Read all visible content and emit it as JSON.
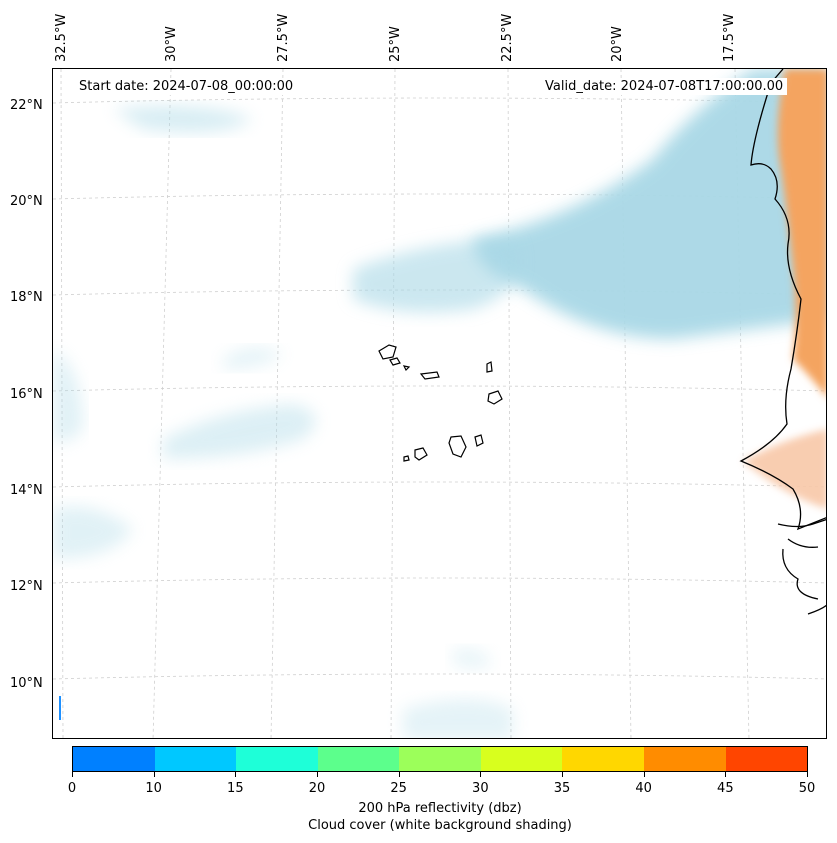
{
  "map": {
    "start_date": "Start date: 2024-07-08_00:00:00",
    "valid_date": "Valid_date: 2024-07-08T17:00:00.00",
    "lon_labels": [
      "32.5°W",
      "30°W",
      "27.5°W",
      "25°W",
      "22.5°W",
      "20°W",
      "17.5°W"
    ],
    "lat_labels": [
      "22°N",
      "20°N",
      "18°N",
      "16°N",
      "14°N",
      "12°N",
      "10°N"
    ],
    "colors": {
      "cloud": "#a9d8e6",
      "land_high": "#f4a460",
      "land_low": "#f8c8a8",
      "radar_blip": "#1e90ff"
    }
  },
  "colorbar": {
    "ticks": [
      "0",
      "10",
      "15",
      "20",
      "25",
      "30",
      "35",
      "40",
      "45",
      "50"
    ],
    "colors": [
      "#0080ff",
      "#00c8ff",
      "#1effd8",
      "#5cff8c",
      "#9cff5a",
      "#d8ff1e",
      "#ffd700",
      "#ff8c00",
      "#ff4500"
    ],
    "label_line1": "200 hPa reflectivity (dbz)",
    "label_line2": "Cloud cover (white background shading)"
  }
}
